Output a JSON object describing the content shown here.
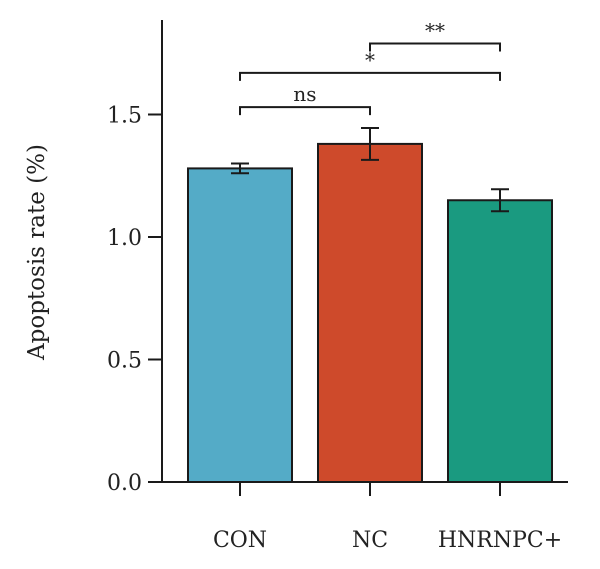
{
  "chart_data": {
    "type": "bar",
    "title": "",
    "xlabel": "",
    "ylabel": "Apoptosis rate (%)",
    "ylim": [
      0,
      1.9
    ],
    "yticks": [
      0.0,
      0.5,
      1.0,
      1.5
    ],
    "ytick_labels": [
      "0.0",
      "0.5",
      "1.0",
      "1.5"
    ],
    "categories": [
      "CON",
      "NC",
      "HNRNPC+"
    ],
    "values": [
      1.28,
      1.38,
      1.15
    ],
    "errors": [
      0.02,
      0.065,
      0.045
    ],
    "colors": [
      "#54abc7",
      "#ce4a2b",
      "#1a9a80"
    ],
    "grid": false,
    "significance": [
      {
        "from": 0,
        "to": 1,
        "y": 1.53,
        "label": "ns"
      },
      {
        "from": 0,
        "to": 2,
        "y": 1.67,
        "label": "*"
      },
      {
        "from": 1,
        "to": 2,
        "y": 1.79,
        "label": "**"
      }
    ]
  }
}
